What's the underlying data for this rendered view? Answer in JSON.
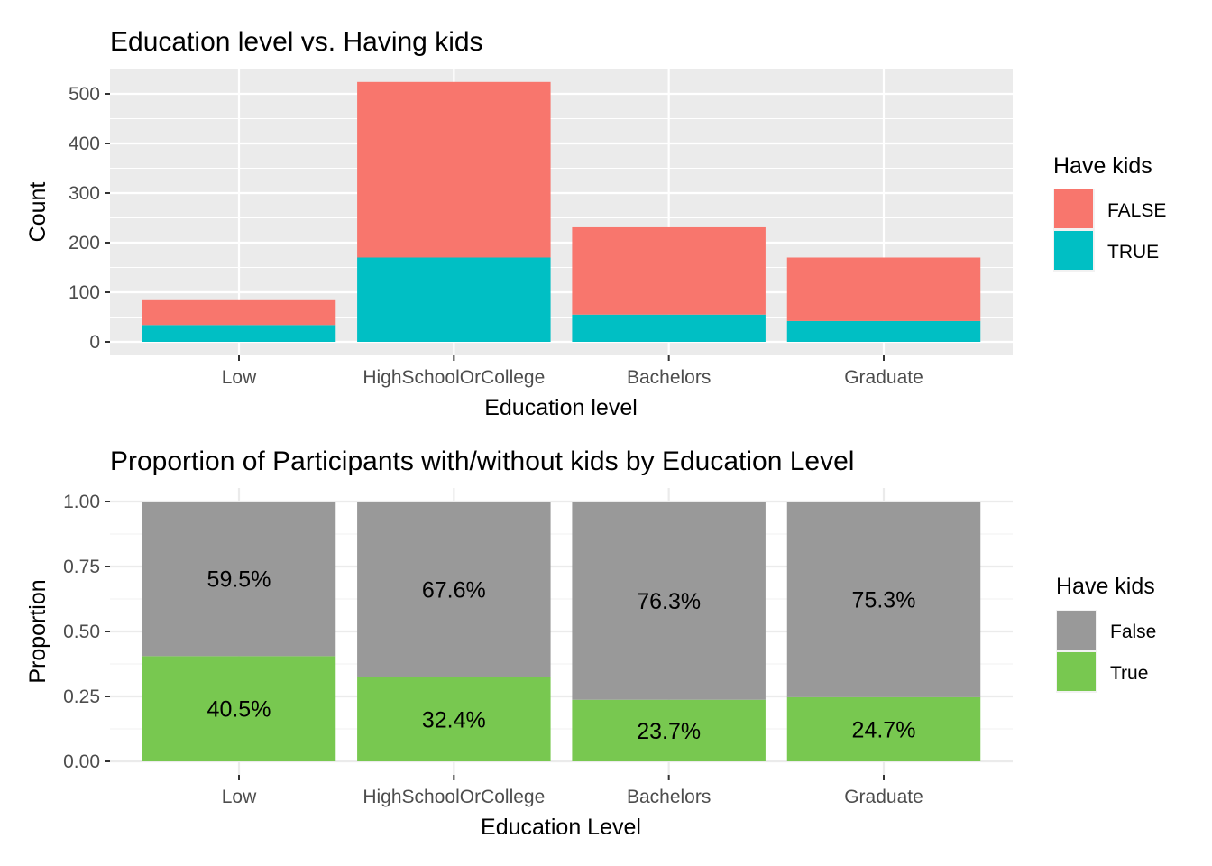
{
  "chart_data": [
    {
      "type": "bar",
      "stacked": true,
      "title": "Education level vs. Having kids",
      "xlabel": "Education level",
      "ylabel": "Count",
      "categories": [
        "Low",
        "HighSchoolOrCollege",
        "Bachelors",
        "Graduate"
      ],
      "series": [
        {
          "name": "FALSE",
          "values": [
            50,
            354,
            176,
            128
          ],
          "color": "#F8766D"
        },
        {
          "name": "TRUE",
          "values": [
            34,
            170,
            55,
            42
          ],
          "color": "#00BFC4"
        }
      ],
      "ylim": [
        0,
        550
      ],
      "yticks": [
        0,
        100,
        200,
        300,
        400,
        500
      ],
      "ytick_labels": [
        "0",
        "100",
        "200",
        "300",
        "400",
        "500"
      ],
      "grid": true,
      "background": "#EBEBEB",
      "legend": {
        "title": "Have kids",
        "position": "right",
        "labels": [
          "FALSE",
          "TRUE"
        ]
      }
    },
    {
      "type": "bar",
      "stacked": true,
      "title": "Proportion of Participants with/without kids by Education Level",
      "xlabel": "Education Level",
      "ylabel": "Proportion",
      "categories": [
        "Low",
        "HighSchoolOrCollege",
        "Bachelors",
        "Graduate"
      ],
      "series": [
        {
          "name": "False",
          "values": [
            0.595,
            0.676,
            0.763,
            0.753
          ],
          "labels": [
            "59.5%",
            "67.6%",
            "76.3%",
            "75.3%"
          ],
          "color": "#999999"
        },
        {
          "name": "True",
          "values": [
            0.405,
            0.324,
            0.237,
            0.247
          ],
          "labels": [
            "40.5%",
            "32.4%",
            "23.7%",
            "24.7%"
          ],
          "color": "#78C850"
        }
      ],
      "ylim": [
        0,
        1
      ],
      "yticks": [
        0,
        0.25,
        0.5,
        0.75,
        1
      ],
      "ytick_labels": [
        "0.00",
        "0.25",
        "0.50",
        "0.75",
        "1.00"
      ],
      "grid": true,
      "background": "#FFFFFF",
      "legend": {
        "title": "Have kids",
        "position": "right",
        "labels": [
          "False",
          "True"
        ]
      }
    }
  ]
}
